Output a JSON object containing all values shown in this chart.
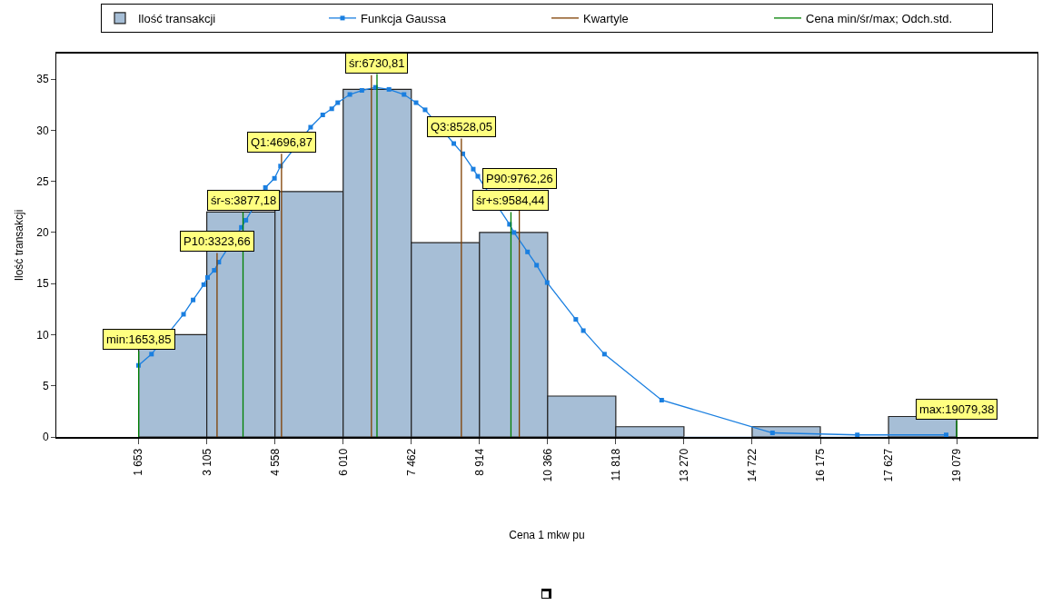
{
  "chart_data": {
    "type": "histogram",
    "xlabel": "Cena 1 mkw pu",
    "ylabel": "Ilość transakcji",
    "legend": "top",
    "grid": false,
    "bins": [
      1653,
      3105,
      4558,
      6010,
      7462,
      8914,
      10366,
      11818,
      13270,
      14722,
      16175,
      17627,
      19079
    ],
    "xlim": [
      -100,
      20800
    ],
    "xticks": [
      {
        "value": 1653,
        "label": "1 653"
      },
      {
        "value": 3105,
        "label": "3 105"
      },
      {
        "value": 4558,
        "label": "4 558"
      },
      {
        "value": 6010,
        "label": "6 010"
      },
      {
        "value": 7462,
        "label": "7 462"
      },
      {
        "value": 8914,
        "label": "8 914"
      },
      {
        "value": 10366,
        "label": "10 366"
      },
      {
        "value": 11818,
        "label": "11 818"
      },
      {
        "value": 13270,
        "label": "13 270"
      },
      {
        "value": 14722,
        "label": "14 722"
      },
      {
        "value": 16175,
        "label": "16 175"
      },
      {
        "value": 17627,
        "label": "17 627"
      },
      {
        "value": 19079,
        "label": "19 079"
      }
    ],
    "ylim": [
      0,
      37.5
    ],
    "yticks": [
      0,
      5,
      10,
      15,
      20,
      25,
      30,
      35
    ],
    "series": [
      {
        "name": "Ilość transakcji",
        "color": "#a6bed6",
        "values": [
          10,
          22,
          24,
          34,
          19,
          20,
          4,
          1,
          0,
          1,
          0,
          2
        ]
      },
      {
        "name": "Funkcja Gaussa",
        "type": "line",
        "color": "#1a7fe0",
        "marker": "square",
        "line_style": "solid",
        "x": [
          1650,
          1928,
          2610,
          2814,
          3040,
          3122,
          3264,
          3361,
          3842,
          3938,
          4354,
          4547,
          4676,
          5317,
          5575,
          5767,
          5895,
          6152,
          6409,
          6697,
          6986,
          7307,
          7563,
          7756,
          8367,
          8559,
          8782,
          8879,
          9553,
          9649,
          9938,
          10131,
          10356,
          10966,
          11126,
          11576,
          12795,
          15155,
          16963,
          18855
        ],
        "values": [
          7.0,
          8.1,
          12.0,
          13.4,
          14.9,
          15.6,
          16.3,
          17.1,
          20.5,
          21.2,
          24.4,
          25.3,
          26.5,
          30.3,
          31.5,
          32.1,
          32.7,
          33.5,
          33.9,
          34.2,
          34.0,
          33.5,
          32.7,
          32.0,
          28.7,
          27.7,
          26.2,
          25.5,
          20.8,
          20.0,
          18.1,
          16.8,
          15.1,
          11.5,
          10.4,
          8.1,
          3.6,
          0.4,
          0.2,
          0.2
        ]
      },
      {
        "name": "Kwartyle",
        "type": "line",
        "color": "#7f3f00",
        "marker": "none",
        "line_style": "solid",
        "x": [
          3323.66,
          3323.66,
          null,
          4696.87,
          4696.87,
          null,
          6612,
          6612,
          null,
          8528.05,
          8528.05,
          null,
          9762.26,
          9762.26
        ],
        "values": [
          0,
          18.0,
          null,
          0,
          27.7,
          null,
          0,
          35.4,
          null,
          0,
          29.2,
          null,
          0,
          24.2
        ]
      },
      {
        "name": "Cena min/śr/max; Odch.std.",
        "type": "line",
        "color": "#008000",
        "marker": "none",
        "line_style": "solid",
        "x": [
          1653.85,
          1653.85,
          null,
          3877.18,
          3877.18,
          null,
          6730.81,
          6730.81,
          null,
          9584.44,
          9584.44,
          null,
          19079.38,
          19079.38
        ],
        "values": [
          0,
          8.4,
          null,
          0,
          22.0,
          null,
          0,
          35.5,
          null,
          0,
          22.0,
          null,
          0,
          1.6
        ]
      }
    ],
    "annotations": [
      {
        "text": "min:1653,85",
        "x": 1653.85,
        "y": 8.4
      },
      {
        "text": "P10:3323,66",
        "x": 3323.66,
        "y": 18.0
      },
      {
        "text": "śr-s:3877,18",
        "x": 3877.18,
        "y": 22.0
      },
      {
        "text": "Q1:4696,87",
        "x": 4696.87,
        "y": 27.7
      },
      {
        "text": "śr:6730,81",
        "x": 6730.81,
        "y": 35.5
      },
      {
        "text": "Q3:8528,05",
        "x": 8528.05,
        "y": 29.2
      },
      {
        "text": "śr+s:9584,44",
        "x": 9584.44,
        "y": 22.0
      },
      {
        "text": "P90:9762,26",
        "x": 9762.26,
        "y": 24.2
      },
      {
        "text": "max:19079,38",
        "x": 19079.38,
        "y": 1.6
      }
    ]
  }
}
